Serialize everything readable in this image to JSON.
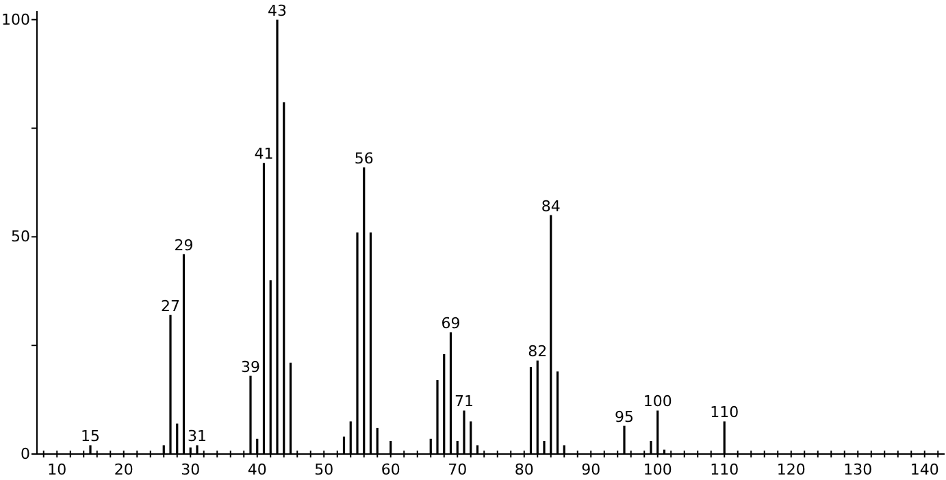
{
  "chart_data": {
    "type": "bar",
    "x": [
      15,
      26,
      27,
      28,
      29,
      30,
      31,
      39,
      40,
      41,
      42,
      43,
      44,
      45,
      53,
      54,
      55,
      56,
      57,
      58,
      60,
      66,
      67,
      68,
      69,
      70,
      71,
      72,
      73,
      81,
      82,
      83,
      84,
      85,
      86,
      95,
      99,
      100,
      101,
      110
    ],
    "values": [
      2,
      2,
      32,
      7,
      46,
      1.5,
      2,
      18,
      3.5,
      67,
      40,
      100,
      81,
      21,
      4,
      7.5,
      51,
      66,
      51,
      6,
      3,
      3.5,
      17,
      23,
      28,
      3,
      10,
      7.5,
      2,
      20,
      21.5,
      3,
      55,
      19,
      2,
      6.5,
      3,
      10,
      1,
      7.5
    ],
    "color": "#000000",
    "xlim": [
      7,
      143
    ],
    "ylim": [
      0,
      102
    ],
    "xticks": [
      {
        "value": 8,
        "label": null
      },
      10,
      {
        "value": 12,
        "label": null
      },
      {
        "value": 14,
        "label": null
      },
      {
        "value": 16,
        "label": null
      },
      {
        "value": 18,
        "label": null
      },
      20,
      {
        "value": 22,
        "label": null
      },
      {
        "value": 24,
        "label": null
      },
      {
        "value": 26,
        "label": null
      },
      {
        "value": 28,
        "label": null
      },
      30,
      {
        "value": 32,
        "label": null
      },
      {
        "value": 34,
        "label": null
      },
      {
        "value": 36,
        "label": null
      },
      {
        "value": 38,
        "label": null
      },
      40,
      {
        "value": 42,
        "label": null
      },
      {
        "value": 44,
        "label": null
      },
      {
        "value": 46,
        "label": null
      },
      {
        "value": 48,
        "label": null
      },
      50,
      {
        "value": 52,
        "label": null
      },
      {
        "value": 54,
        "label": null
      },
      {
        "value": 56,
        "label": null
      },
      {
        "value": 58,
        "label": null
      },
      60,
      {
        "value": 62,
        "label": null
      },
      {
        "value": 64,
        "label": null
      },
      {
        "value": 66,
        "label": null
      },
      {
        "value": 68,
        "label": null
      },
      70,
      {
        "value": 72,
        "label": null
      },
      {
        "value": 74,
        "label": null
      },
      {
        "value": 76,
        "label": null
      },
      {
        "value": 78,
        "label": null
      },
      80,
      {
        "value": 82,
        "label": null
      },
      {
        "value": 84,
        "label": null
      },
      {
        "value": 86,
        "label": null
      },
      {
        "value": 88,
        "label": null
      },
      90,
      {
        "value": 92,
        "label": null
      },
      {
        "value": 94,
        "label": null
      },
      {
        "value": 96,
        "label": null
      },
      {
        "value": 98,
        "label": null
      },
      100,
      {
        "value": 102,
        "label": null
      },
      {
        "value": 104,
        "label": null
      },
      {
        "value": 106,
        "label": null
      },
      {
        "value": 108,
        "label": null
      },
      110,
      {
        "value": 112,
        "label": null
      },
      {
        "value": 114,
        "label": null
      },
      {
        "value": 116,
        "label": null
      },
      {
        "value": 118,
        "label": null
      },
      120,
      {
        "value": 122,
        "label": null
      },
      {
        "value": 124,
        "label": null
      },
      {
        "value": 126,
        "label": null
      },
      {
        "value": 128,
        "label": null
      },
      130,
      {
        "value": 132,
        "label": null
      },
      {
        "value": 134,
        "label": null
      },
      {
        "value": 136,
        "label": null
      },
      {
        "value": 138,
        "label": null
      },
      140,
      {
        "value": 142,
        "label": null
      }
    ],
    "yticks": [
      0,
      {
        "value": 25,
        "label": null
      },
      50,
      {
        "value": 75,
        "label": null
      },
      100
    ],
    "annotations": [
      {
        "text": "15",
        "x": 15,
        "y": 2
      },
      {
        "text": "27",
        "x": 27,
        "y": 32
      },
      {
        "text": "29",
        "x": 29,
        "y": 46
      },
      {
        "text": "31",
        "x": 31,
        "y": 2
      },
      {
        "text": "39",
        "x": 39,
        "y": 18
      },
      {
        "text": "41",
        "x": 41,
        "y": 67
      },
      {
        "text": "43",
        "x": 43,
        "y": 100
      },
      {
        "text": "56",
        "x": 56,
        "y": 66
      },
      {
        "text": "69",
        "x": 69,
        "y": 28
      },
      {
        "text": "71",
        "x": 71,
        "y": 10
      },
      {
        "text": "82",
        "x": 82,
        "y": 21.5
      },
      {
        "text": "84",
        "x": 84,
        "y": 55
      },
      {
        "text": "95",
        "x": 95,
        "y": 6.5
      },
      {
        "text": "100",
        "x": 100,
        "y": 10
      },
      {
        "text": "110",
        "x": 110,
        "y": 7.5
      }
    ]
  }
}
